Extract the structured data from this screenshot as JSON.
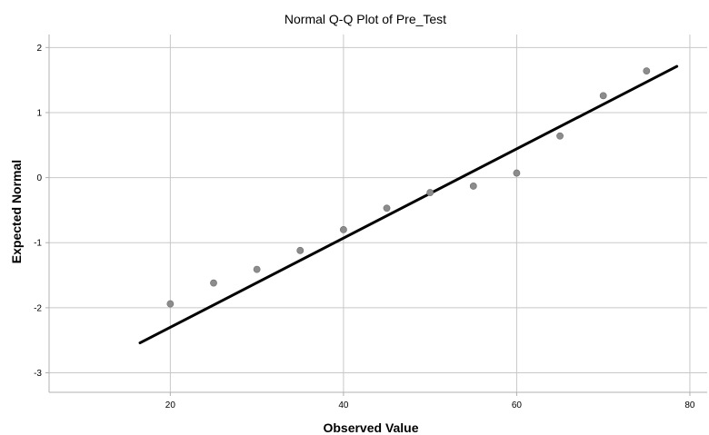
{
  "chart_data": {
    "type": "scatter",
    "title": "Normal Q-Q Plot of Pre_Test",
    "xlabel": "Observed Value",
    "ylabel": "Expected Normal",
    "xlim": [
      6,
      82
    ],
    "ylim": [
      -3.3,
      2.2
    ],
    "xticks": [
      20,
      40,
      60,
      80
    ],
    "yticks": [
      2,
      1,
      0,
      -1,
      -2,
      -3
    ],
    "xtick_labels": [
      "20",
      "40",
      "60",
      "80"
    ],
    "ytick_labels": [
      "2",
      "1",
      "0",
      "-1",
      "-2",
      "-3"
    ],
    "grid": true,
    "points": [
      {
        "x": 20,
        "y": -1.94
      },
      {
        "x": 25,
        "y": -1.62
      },
      {
        "x": 30,
        "y": -1.41
      },
      {
        "x": 35,
        "y": -1.12
      },
      {
        "x": 40,
        "y": -0.8
      },
      {
        "x": 45,
        "y": -0.47
      },
      {
        "x": 50,
        "y": -0.23
      },
      {
        "x": 55,
        "y": -0.13
      },
      {
        "x": 60,
        "y": 0.07
      },
      {
        "x": 65,
        "y": 0.64
      },
      {
        "x": 70,
        "y": 1.26
      },
      {
        "x": 75,
        "y": 1.64
      }
    ],
    "reference_line": {
      "x": [
        16.5,
        78.5
      ],
      "y": [
        -2.54,
        1.71
      ]
    },
    "colors": {
      "point": "#8c8c8c",
      "line": "#000000",
      "grid": "#c8c8c8",
      "axis": "#b0b0b0"
    }
  }
}
